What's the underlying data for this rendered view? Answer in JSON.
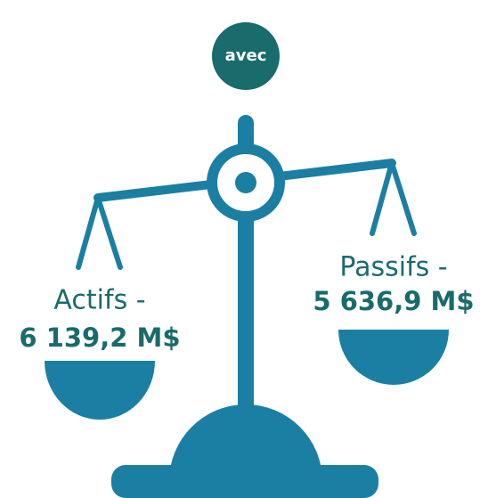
{
  "badge": {
    "label": "avec"
  },
  "left": {
    "label": "Actifs -",
    "amount": "6 139,2 M$"
  },
  "right": {
    "label": "Passifs -",
    "amount": "5 636,9 M$"
  }
}
